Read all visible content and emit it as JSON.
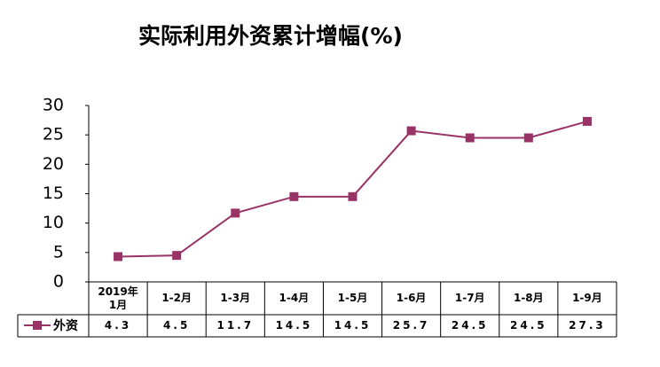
{
  "chart_data": {
    "type": "line",
    "title": "实际利用外资累计增幅(%)",
    "categories": [
      "2019年\n1月",
      "1-2月",
      "1-3月",
      "1-4月",
      "1-5月",
      "1-6月",
      "1-7月",
      "1-8月",
      "1-9月"
    ],
    "series": [
      {
        "name": "外资",
        "color": "#993366",
        "values": [
          4.3,
          4.5,
          11.7,
          14.5,
          14.5,
          25.7,
          24.5,
          24.5,
          27.3
        ]
      }
    ],
    "ylim": [
      0,
      30
    ],
    "yticks": [
      0,
      5,
      10,
      15,
      20,
      25,
      30
    ],
    "grid": false
  }
}
